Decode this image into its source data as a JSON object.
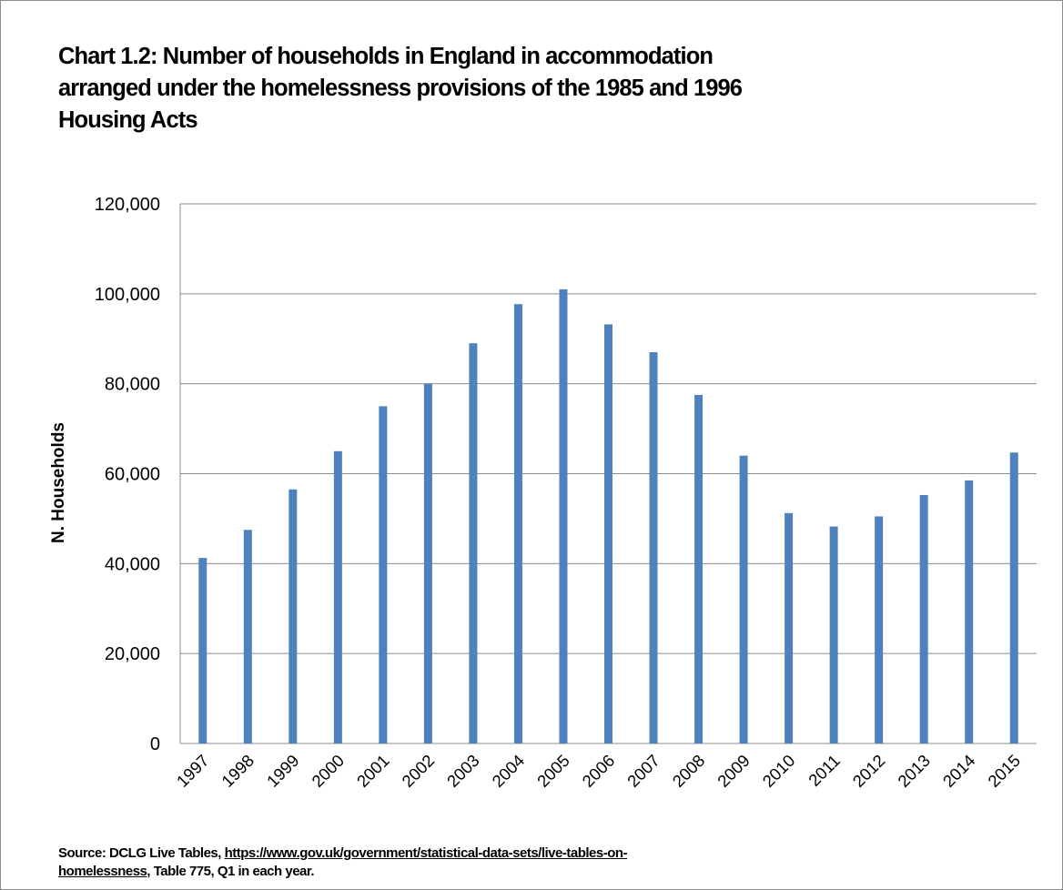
{
  "chart_data": {
    "type": "bar",
    "title_lines": [
      "Chart 1.2: Number of households in England in accommodation",
      "arranged under the homelessness provisions of the 1985 and 1996",
      "Housing Acts"
    ],
    "ylabel": "N. Households",
    "xlabel": "",
    "ylim": [
      0,
      120000
    ],
    "yticks": [
      0,
      20000,
      40000,
      60000,
      80000,
      100000,
      120000
    ],
    "ytick_labels": [
      "0",
      "20,000",
      "40,000",
      "60,000",
      "80,000",
      "100,000",
      "120,000"
    ],
    "grid": true,
    "legend": "none",
    "categories": [
      "1997",
      "1998",
      "1999",
      "2000",
      "2001",
      "2002",
      "2003",
      "2004",
      "2005",
      "2006",
      "2007",
      "2008",
      "2009",
      "2010",
      "2011",
      "2012",
      "2013",
      "2014",
      "2015"
    ],
    "values": [
      41250,
      47500,
      56500,
      65000,
      75000,
      80000,
      89000,
      97700,
      101000,
      93200,
      87000,
      77500,
      64000,
      51250,
      48250,
      50500,
      55250,
      58500,
      64700
    ],
    "bar_color": "#4f81bd"
  },
  "source": {
    "prefix": "Source: DCLG Live Tables, ",
    "link_line1": "https://www.gov.uk/government/statistical-data-sets/live-tables-on-",
    "link_line2": "homelessness",
    "suffix": ",  Table 775, Q1 in each year."
  }
}
